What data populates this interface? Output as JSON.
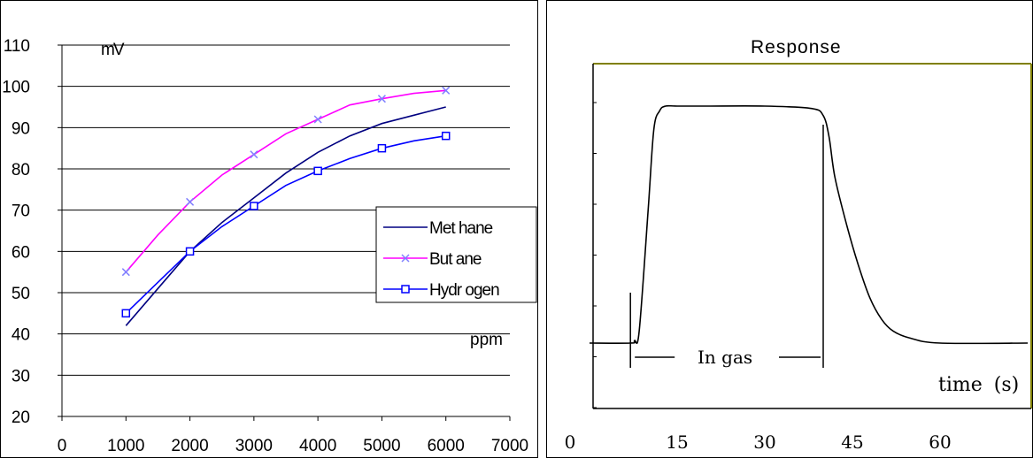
{
  "chart_data": [
    {
      "type": "line",
      "ylabel": "mV",
      "xlabel": "ppm",
      "xlim": [
        0,
        7000
      ],
      "ylim": [
        20,
        110
      ],
      "x_ticks": [
        0,
        1000,
        2000,
        3000,
        4000,
        5000,
        6000,
        7000
      ],
      "y_ticks": [
        20,
        30,
        40,
        50,
        60,
        70,
        80,
        90,
        100,
        110
      ],
      "grid": "horizontal",
      "legend_position": "right",
      "series": [
        {
          "name": "Met hane",
          "color": "#000080",
          "marker": "none",
          "x": [
            1000,
            1500,
            2000,
            2500,
            3000,
            3500,
            4000,
            4500,
            5000,
            5500,
            6000
          ],
          "y": [
            42,
            51,
            60,
            67,
            73,
            79,
            84,
            88,
            91,
            93,
            95
          ]
        },
        {
          "name": "But ane",
          "color": "#ff00ff",
          "marker": "x",
          "marker_x": [
            1000,
            2000,
            3000,
            4000,
            5000,
            6000
          ],
          "x": [
            1000,
            1500,
            2000,
            2500,
            3000,
            3500,
            4000,
            4500,
            5000,
            5500,
            6000
          ],
          "y": [
            55,
            64,
            72,
            78.5,
            83.5,
            88.5,
            92,
            95.5,
            97,
            98.3,
            99
          ]
        },
        {
          "name": "Hydr ogen",
          "color": "#0000ff",
          "marker": "square",
          "marker_x": [
            1000,
            2000,
            3000,
            4000,
            5000,
            6000
          ],
          "x": [
            1000,
            1500,
            2000,
            2500,
            3000,
            3500,
            4000,
            4500,
            5000,
            5500,
            6000
          ],
          "y": [
            45,
            52.5,
            60,
            66,
            71,
            76,
            79.5,
            82.5,
            85,
            86.8,
            88
          ]
        }
      ]
    },
    {
      "type": "line",
      "title": "Response",
      "xlabel": "time (s)",
      "annotation": "In gas",
      "gas_on_s": 7,
      "gas_off_s": 40,
      "x_ticks": [
        0,
        15,
        30,
        45,
        60
      ],
      "line_color": "#000000",
      "frame_color": "#808000",
      "series": [
        {
          "name": "",
          "x": [
            0,
            7,
            7.7,
            8.5,
            10,
            11,
            12,
            13,
            15,
            20,
            30,
            38,
            40,
            41,
            42,
            44,
            46,
            48,
            50,
            52,
            55,
            60,
            75
          ],
          "y": [
            0,
            0,
            0.01,
            0.05,
            0.55,
            0.9,
            0.98,
            1,
            1,
            1,
            1,
            0.99,
            0.96,
            0.87,
            0.7,
            0.5,
            0.33,
            0.19,
            0.1,
            0.05,
            0.02,
            0,
            0
          ]
        }
      ]
    }
  ]
}
